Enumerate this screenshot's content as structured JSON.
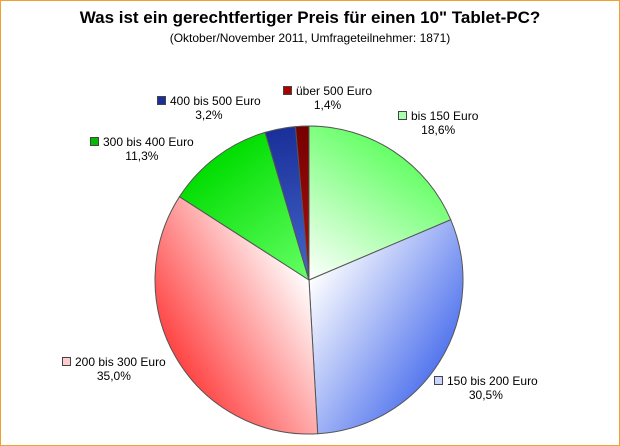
{
  "chart_data": {
    "type": "pie",
    "title": "Was ist ein gerechtfertiger Preis für einen 10\" Tablet-PC?",
    "subtitle": "(Oktober/November 2011, Umfrageteilnehmer: 1871)",
    "start_angle_deg": 0,
    "direction": "clockwise",
    "slices": [
      {
        "name": "bis 150 Euro",
        "value": 18.6,
        "label": "18,6%",
        "color_light": "#ffffff",
        "color_dark": "#66ff66",
        "legend_color": "#aaffaa"
      },
      {
        "name": "150 bis 200 Euro",
        "value": 30.5,
        "label": "30,5%",
        "color_light": "#ffffff",
        "color_dark": "#5577ee",
        "legend_color": "#c8d4ff"
      },
      {
        "name": "200 bis 300 Euro",
        "value": 35.0,
        "label": "35,0%",
        "color_light": "#ffffff",
        "color_dark": "#ff4444",
        "legend_color": "#ffcccc"
      },
      {
        "name": "300 bis 400 Euro",
        "value": 11.3,
        "label": "11,3%",
        "color_light": "#66ff66",
        "color_dark": "#00dd00",
        "legend_color": "#00bb00"
      },
      {
        "name": "400 bis 500 Euro",
        "value": 3.2,
        "label": "3,2%",
        "color_light": "#4466cc",
        "color_dark": "#1a2f99",
        "legend_color": "#1a2f99"
      },
      {
        "name": "über 500 Euro",
        "value": 1.4,
        "label": "1,4%",
        "color_light": "#aa1111",
        "color_dark": "#770000",
        "legend_color": "#aa0000"
      }
    ]
  }
}
